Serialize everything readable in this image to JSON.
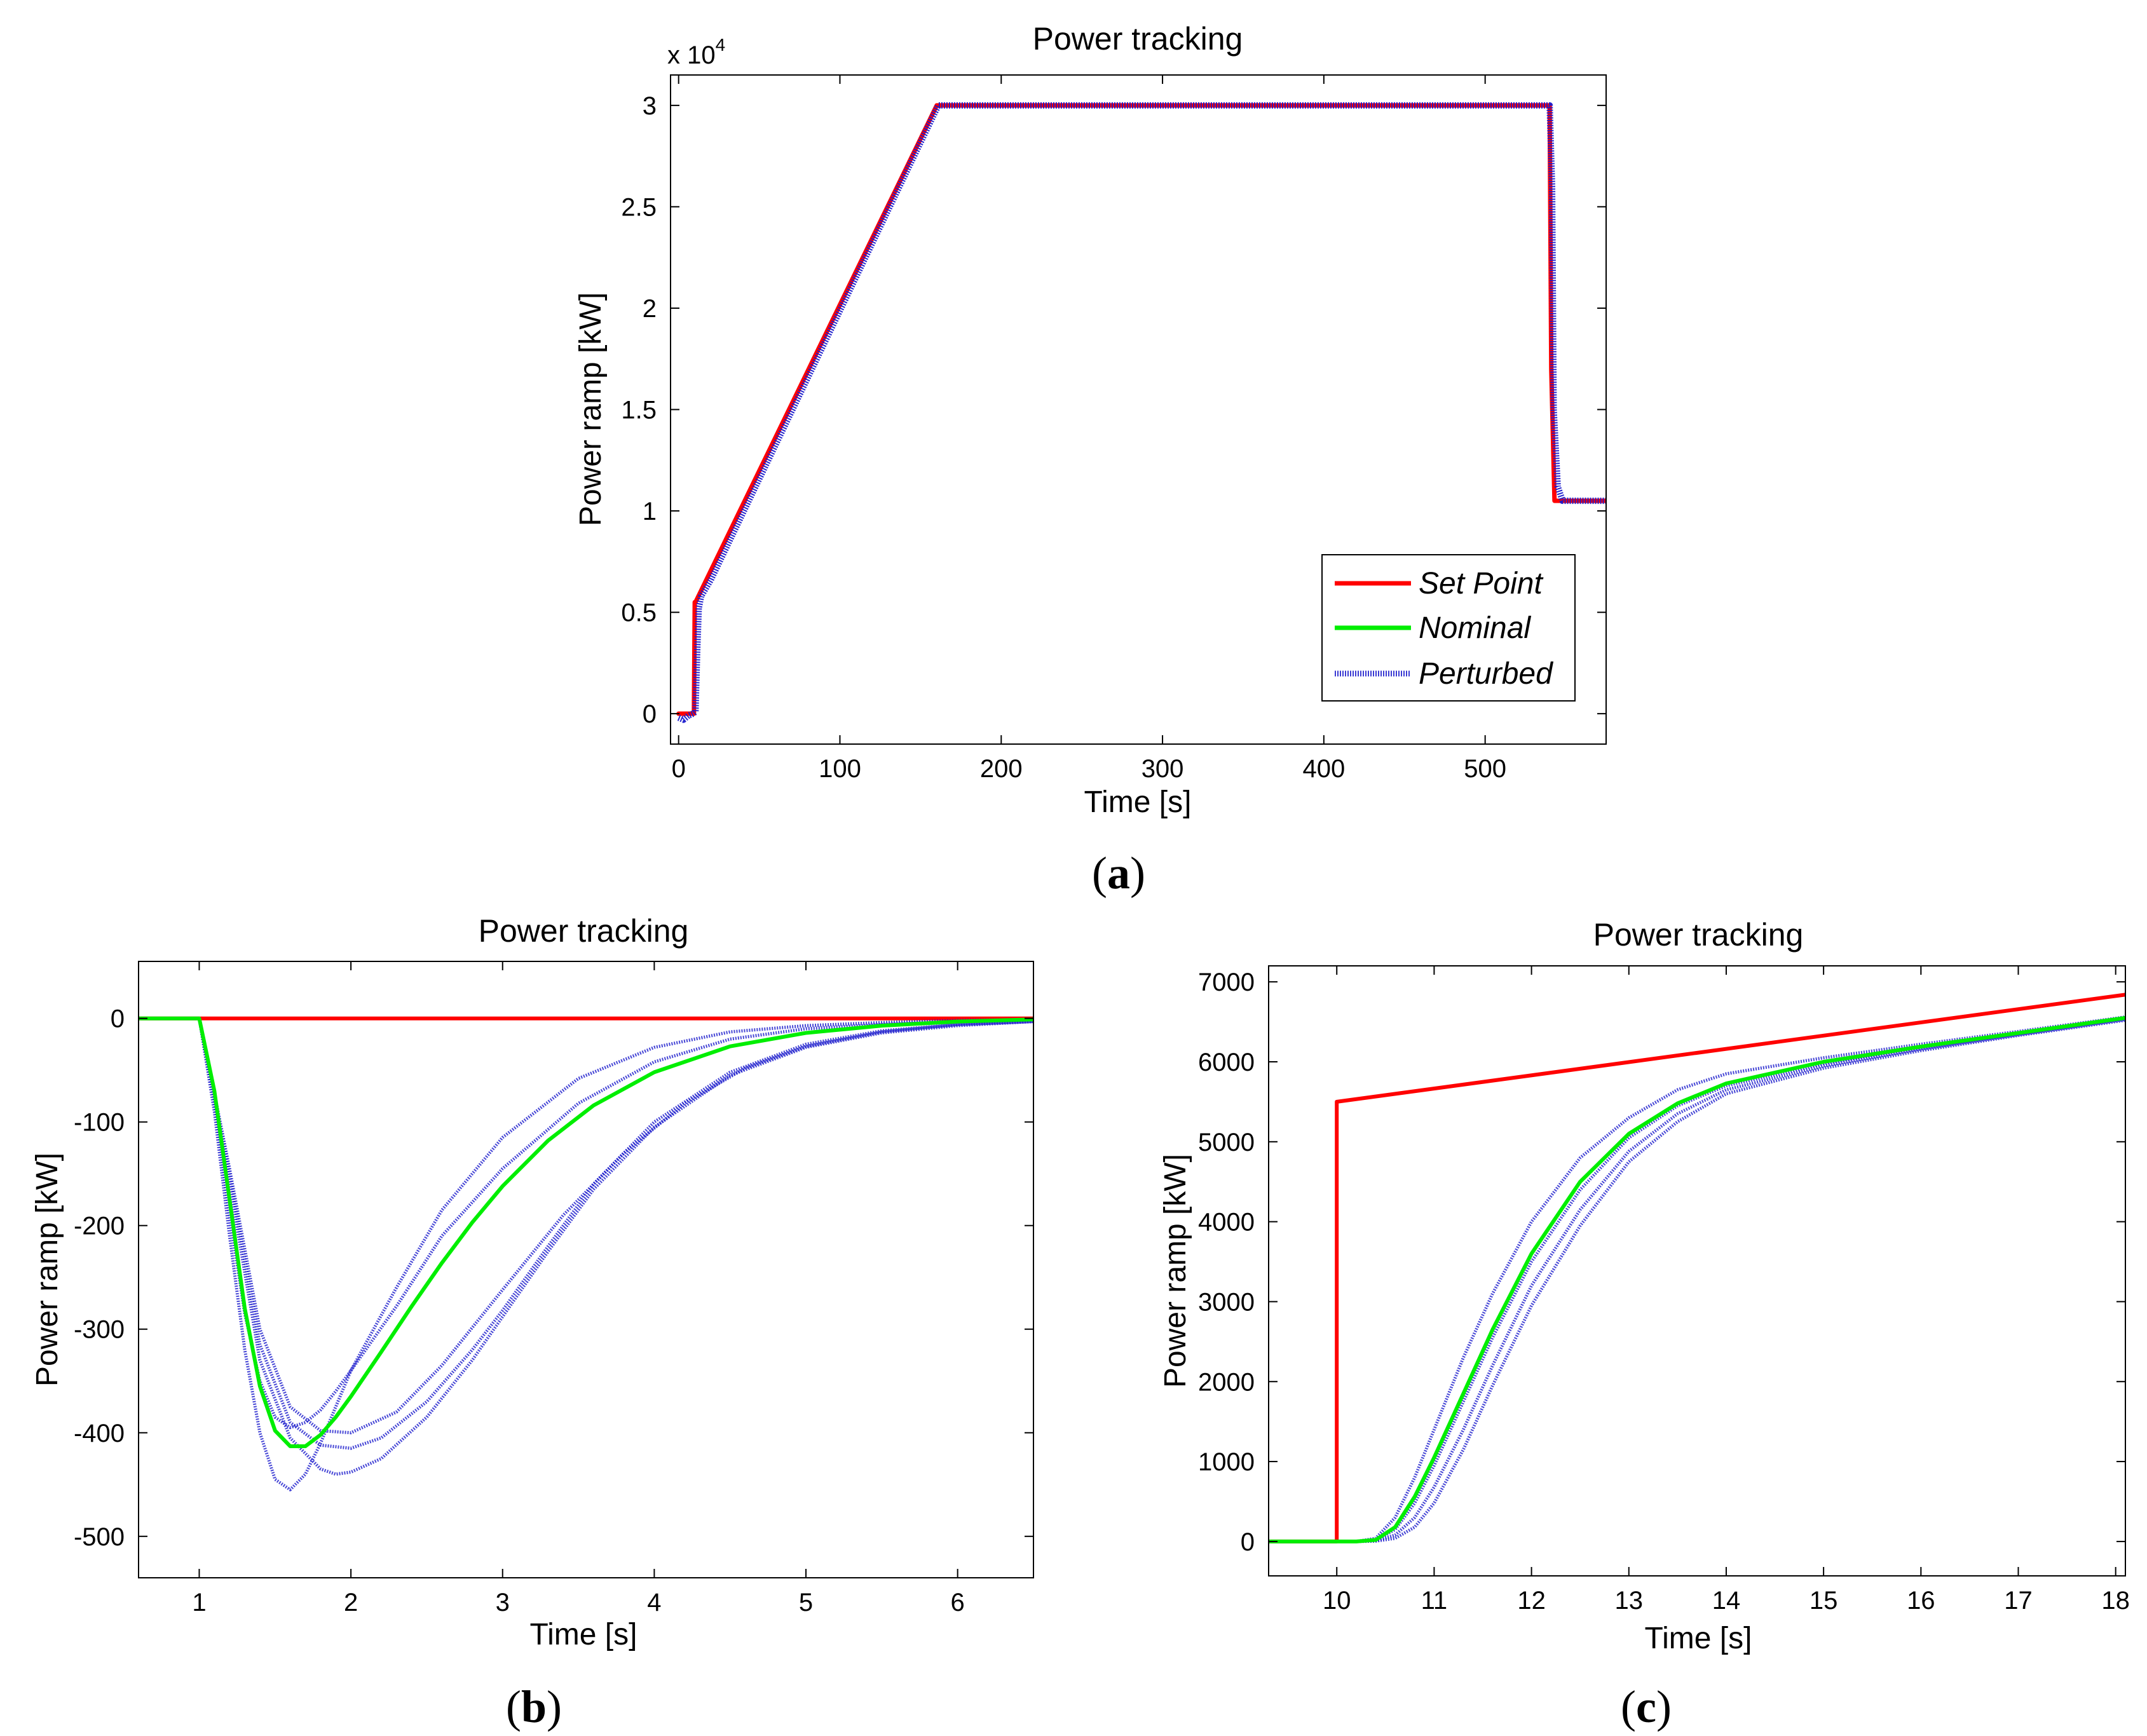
{
  "colors": {
    "setpoint": "#ff0000",
    "nominal": "#00ee00",
    "perturbed": "#1a1acc",
    "axis": "#000000"
  },
  "chart_data": [
    {
      "id": "a",
      "type": "line",
      "title": "Power tracking",
      "xlabel": "Time [s]",
      "ylabel": "Power ramp [kW]",
      "caption_letter": "a",
      "exponent_prefix": "x 10",
      "exponent_power": "4",
      "xlim": [
        -5,
        575
      ],
      "ylim": [
        -0.15,
        3.15
      ],
      "xticks": [
        0,
        100,
        200,
        300,
        400,
        500
      ],
      "xtick_labels": [
        "0",
        "100",
        "200",
        "300",
        "400",
        "500"
      ],
      "yticks": [
        0,
        0.5,
        1,
        1.5,
        2,
        2.5,
        3
      ],
      "ytick_labels": [
        "0",
        "0.5",
        "1",
        "1.5",
        "2",
        "2.5",
        "3"
      ],
      "legend": {
        "position": "bottom-right",
        "entries": [
          "Set Point",
          "Nominal",
          "Perturbed"
        ]
      },
      "series": [
        {
          "name": "Set Point",
          "style": "solid",
          "color_key": "setpoint",
          "x": [
            0,
            9.5,
            10,
            10.5,
            160,
            540,
            541,
            543,
            575
          ],
          "y": [
            0,
            0,
            0.55,
            0.55,
            3.0,
            3.0,
            1.7,
            1.05,
            1.05
          ]
        },
        {
          "name": "Perturbed",
          "style": "dotted",
          "color_key": "perturbed",
          "x": [
            0,
            3,
            6,
            9,
            10.5,
            11.5,
            12.5,
            14,
            20,
            161,
            540,
            541.5,
            542.5,
            545,
            548,
            575
          ],
          "y": [
            -0.02,
            -0.03,
            -0.01,
            0,
            0.01,
            0.3,
            0.52,
            0.58,
            0.66,
            3.0,
            3.0,
            2.6,
            1.5,
            1.12,
            1.05,
            1.05
          ]
        }
      ]
    },
    {
      "id": "b",
      "type": "line",
      "title": "Power tracking",
      "xlabel": "Time [s]",
      "ylabel": "Power ramp [kW]",
      "caption_letter": "b",
      "xlim": [
        0.6,
        6.5
      ],
      "ylim": [
        -540,
        55
      ],
      "xticks": [
        1,
        2,
        3,
        4,
        5,
        6
      ],
      "xtick_labels": [
        "1",
        "2",
        "3",
        "4",
        "5",
        "6"
      ],
      "yticks": [
        0,
        -100,
        -200,
        -300,
        -400,
        -500
      ],
      "ytick_labels": [
        "0",
        "-100",
        "-200",
        "-300",
        "-400",
        "-500"
      ],
      "series": [
        {
          "name": "Set Point",
          "style": "solid",
          "color_key": "setpoint",
          "x": [
            0.6,
            6.5
          ],
          "y": [
            0,
            0
          ]
        },
        {
          "name": "Perturbed",
          "style": "dotted",
          "color_key": "perturbed",
          "x": [
            0.6,
            1.0,
            1.1,
            1.2,
            1.3,
            1.4,
            1.5,
            1.6,
            1.7,
            1.8,
            1.9,
            2.0,
            2.3,
            2.6,
            3.0,
            3.5,
            4.0,
            4.5,
            5.0,
            5.5,
            6.0,
            6.5
          ],
          "y": [
            0,
            0,
            -90,
            -210,
            -320,
            -400,
            -445,
            -455,
            -440,
            -410,
            -375,
            -340,
            -260,
            -185,
            -115,
            -58,
            -28,
            -13,
            -7,
            -4,
            -2,
            -1
          ]
        },
        {
          "name": "Perturbed",
          "style": "dotted",
          "color_key": "perturbed",
          "x": [
            0.6,
            1.0,
            1.1,
            1.2,
            1.3,
            1.4,
            1.5,
            1.6,
            1.7,
            1.8,
            1.9,
            2.0,
            2.3,
            2.6,
            3.0,
            3.5,
            4.0,
            4.5,
            5.0,
            5.5,
            6.0,
            6.5
          ],
          "y": [
            0,
            0,
            -80,
            -190,
            -285,
            -350,
            -385,
            -395,
            -390,
            -378,
            -360,
            -340,
            -278,
            -210,
            -145,
            -82,
            -42,
            -20,
            -10,
            -6,
            -3,
            -1
          ]
        },
        {
          "name": "Perturbed",
          "style": "dotted",
          "color_key": "perturbed",
          "x": [
            0.6,
            1.0,
            1.2,
            1.4,
            1.6,
            1.8,
            1.9,
            2.0,
            2.2,
            2.5,
            2.8,
            3.0,
            3.3,
            3.6,
            4.0,
            4.5,
            5.0,
            5.5,
            6.0,
            6.5
          ],
          "y": [
            0,
            0,
            -160,
            -330,
            -405,
            -435,
            -440,
            -438,
            -425,
            -385,
            -330,
            -288,
            -225,
            -165,
            -105,
            -55,
            -28,
            -14,
            -7,
            -3
          ]
        },
        {
          "name": "Perturbed",
          "style": "dotted",
          "color_key": "perturbed",
          "x": [
            0.6,
            1.0,
            1.2,
            1.4,
            1.6,
            1.8,
            2.0,
            2.2,
            2.5,
            2.8,
            3.0,
            3.3,
            3.6,
            4.0,
            4.5,
            5.0,
            5.5,
            6.0,
            6.5
          ],
          "y": [
            0,
            0,
            -150,
            -315,
            -390,
            -412,
            -415,
            -405,
            -370,
            -320,
            -282,
            -220,
            -160,
            -100,
            -52,
            -25,
            -12,
            -6,
            -3
          ]
        },
        {
          "name": "Perturbed",
          "style": "dotted",
          "color_key": "perturbed",
          "x": [
            0.6,
            1.0,
            1.2,
            1.4,
            1.6,
            1.8,
            2.0,
            2.3,
            2.6,
            3.0,
            3.4,
            3.8,
            4.2,
            4.6,
            5.0,
            5.5,
            6.0,
            6.5
          ],
          "y": [
            0,
            0,
            -145,
            -300,
            -375,
            -398,
            -400,
            -380,
            -335,
            -262,
            -190,
            -130,
            -82,
            -48,
            -27,
            -13,
            -6,
            -3
          ]
        },
        {
          "name": "Nominal",
          "style": "solid",
          "color_key": "nominal",
          "x": [
            0.6,
            1.0,
            1.1,
            1.2,
            1.3,
            1.4,
            1.5,
            1.6,
            1.7,
            1.8,
            1.9,
            2.0,
            2.2,
            2.4,
            2.6,
            2.8,
            3.0,
            3.3,
            3.6,
            4.0,
            4.5,
            5.0,
            5.5,
            6.0,
            6.5
          ],
          "y": [
            0,
            0,
            -70,
            -175,
            -280,
            -355,
            -398,
            -413,
            -413,
            -402,
            -385,
            -365,
            -322,
            -278,
            -236,
            -197,
            -162,
            -118,
            -84,
            -52,
            -27,
            -14,
            -7,
            -3,
            -1
          ]
        }
      ]
    },
    {
      "id": "c",
      "type": "line",
      "title": "Power tracking",
      "xlabel": "Time [s]",
      "ylabel": "Power ramp [kW]",
      "caption_letter": "c",
      "xlim": [
        9.3,
        18.1
      ],
      "ylim": [
        -430,
        7200
      ],
      "xticks": [
        10,
        11,
        12,
        13,
        14,
        15,
        16,
        17,
        18
      ],
      "xtick_labels": [
        "10",
        "11",
        "12",
        "13",
        "14",
        "15",
        "16",
        "17",
        "18"
      ],
      "yticks": [
        0,
        1000,
        2000,
        3000,
        4000,
        5000,
        6000,
        7000
      ],
      "ytick_labels": [
        "0",
        "1000",
        "2000",
        "3000",
        "4000",
        "5000",
        "6000",
        "7000"
      ],
      "series": [
        {
          "name": "Set Point",
          "style": "solid",
          "color_key": "setpoint",
          "x": [
            9.3,
            10.0,
            10.0,
            18.1
          ],
          "y": [
            0,
            0,
            5500,
            6840
          ]
        },
        {
          "name": "Perturbed",
          "style": "dotted",
          "color_key": "perturbed",
          "x": [
            9.3,
            10.2,
            10.4,
            10.6,
            10.8,
            11.0,
            11.3,
            11.6,
            12.0,
            12.5,
            13.0,
            13.5,
            14.0,
            15.0,
            16.0,
            17.0,
            18.1
          ],
          "y": [
            0,
            0,
            40,
            300,
            800,
            1400,
            2300,
            3100,
            4000,
            4800,
            5300,
            5650,
            5850,
            6050,
            6220,
            6380,
            6560
          ]
        },
        {
          "name": "Perturbed",
          "style": "dotted",
          "color_key": "perturbed",
          "x": [
            9.3,
            10.2,
            10.4,
            10.6,
            10.8,
            11.0,
            11.3,
            11.6,
            12.0,
            12.5,
            13.0,
            13.5,
            14.0,
            15.0,
            16.0,
            17.0,
            18.1
          ],
          "y": [
            0,
            0,
            20,
            150,
            480,
            950,
            1750,
            2550,
            3500,
            4400,
            5050,
            5450,
            5700,
            5980,
            6180,
            6350,
            6540
          ]
        },
        {
          "name": "Perturbed",
          "style": "dotted",
          "color_key": "perturbed",
          "x": [
            9.3,
            10.2,
            10.4,
            10.6,
            10.8,
            11.0,
            11.3,
            11.6,
            12.0,
            12.5,
            13.0,
            13.5,
            14.0,
            15.0,
            16.0,
            17.0,
            18.1
          ],
          "y": [
            0,
            0,
            10,
            80,
            300,
            680,
            1400,
            2200,
            3200,
            4150,
            4880,
            5350,
            5650,
            5950,
            6160,
            6340,
            6530
          ]
        },
        {
          "name": "Perturbed",
          "style": "dotted",
          "color_key": "perturbed",
          "x": [
            9.3,
            10.2,
            10.4,
            10.6,
            10.8,
            11.0,
            11.3,
            11.6,
            12.0,
            12.5,
            13.0,
            13.5,
            14.0,
            15.0,
            16.0,
            17.0,
            18.1
          ],
          "y": [
            0,
            0,
            5,
            40,
            180,
            480,
            1150,
            1950,
            2950,
            3950,
            4750,
            5250,
            5600,
            5920,
            6140,
            6330,
            6520
          ]
        },
        {
          "name": "Nominal",
          "style": "solid",
          "color_key": "nominal",
          "x": [
            9.3,
            10.2,
            10.4,
            10.6,
            10.8,
            11.0,
            11.3,
            11.6,
            12.0,
            12.5,
            13.0,
            13.5,
            14.0,
            15.0,
            16.0,
            17.0,
            18.1
          ],
          "y": [
            0,
            0,
            20,
            180,
            560,
            1050,
            1850,
            2650,
            3600,
            4500,
            5100,
            5480,
            5730,
            6000,
            6190,
            6360,
            6550
          ]
        }
      ]
    }
  ]
}
